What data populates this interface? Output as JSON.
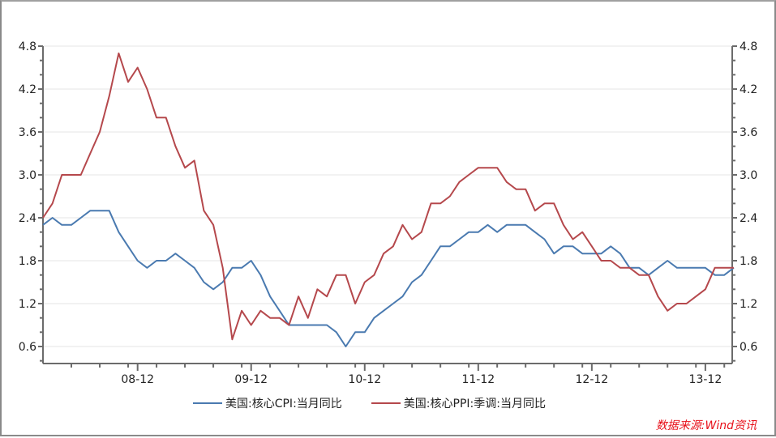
{
  "chart_data": {
    "type": "line",
    "title": "",
    "xlabel": "",
    "ylabel": "",
    "ylim": [
      0.4,
      4.9
    ],
    "y_ticks": [
      "4.8",
      "4.2",
      "3.6",
      "3.0",
      "2.4",
      "1.8",
      "1.2",
      "0.6"
    ],
    "y_ticks_right": [
      "4.8",
      "4.2",
      "3.6",
      "3.0",
      "2.4",
      "1.8",
      "1.2",
      "0.6"
    ],
    "x_tick_labels": [
      "08-12",
      "09-12",
      "10-12",
      "11-12",
      "12-12",
      "13-12"
    ],
    "x_start": "2008-02",
    "x_frequency": "monthly",
    "grid": "horizontal",
    "legend_position": "bottom",
    "series": [
      {
        "name": "美国:核心CPI:当月同比",
        "color": "#4a7ab0",
        "axis": "left",
        "values": [
          2.3,
          2.4,
          2.3,
          2.3,
          2.4,
          2.5,
          2.5,
          2.5,
          2.2,
          2.0,
          1.8,
          1.7,
          1.8,
          1.8,
          1.9,
          1.8,
          1.7,
          1.5,
          1.4,
          1.5,
          1.7,
          1.7,
          1.8,
          1.6,
          1.3,
          1.1,
          0.9,
          0.9,
          0.9,
          0.9,
          0.9,
          0.8,
          0.6,
          0.8,
          0.8,
          1.0,
          1.1,
          1.2,
          1.3,
          1.5,
          1.6,
          1.8,
          2.0,
          2.0,
          2.1,
          2.2,
          2.2,
          2.3,
          2.2,
          2.3,
          2.3,
          2.3,
          2.2,
          2.1,
          1.9,
          2.0,
          2.0,
          1.9,
          1.9,
          1.9,
          2.0,
          1.9,
          1.7,
          1.7,
          1.6,
          1.7,
          1.8,
          1.7,
          1.7,
          1.7,
          1.7,
          1.6,
          1.6,
          1.7
        ]
      },
      {
        "name": "美国:核心PPI:季调:当月同比",
        "color": "#b5484c",
        "axis": "right",
        "values": [
          2.4,
          2.6,
          3.0,
          3.0,
          3.0,
          3.3,
          3.6,
          4.1,
          4.7,
          4.3,
          4.5,
          4.2,
          3.8,
          3.8,
          3.4,
          3.1,
          3.2,
          2.5,
          2.3,
          1.7,
          0.7,
          1.1,
          0.9,
          1.1,
          1.0,
          1.0,
          0.9,
          1.3,
          1.0,
          1.4,
          1.3,
          1.6,
          1.6,
          1.2,
          1.5,
          1.6,
          1.9,
          2.0,
          2.3,
          2.1,
          2.2,
          2.6,
          2.6,
          2.7,
          2.9,
          3.0,
          3.1,
          3.1,
          3.1,
          2.9,
          2.8,
          2.8,
          2.5,
          2.6,
          2.6,
          2.3,
          2.1,
          2.2,
          2.0,
          1.8,
          1.8,
          1.7,
          1.7,
          1.6,
          1.6,
          1.3,
          1.1,
          1.2,
          1.2,
          1.3,
          1.4,
          1.7,
          1.7,
          1.7
        ]
      }
    ]
  },
  "legend": {
    "items": [
      {
        "label": "美国:核心CPI:当月同比",
        "color": "#4a7ab0"
      },
      {
        "label": "美国:核心PPI:季调:当月同比",
        "color": "#b5484c"
      }
    ]
  },
  "source": "数据来源:Wind资讯",
  "colors": {
    "axis": "#6b6b6b",
    "grid": "#e6e6e6",
    "source_text": "#e8101a"
  }
}
